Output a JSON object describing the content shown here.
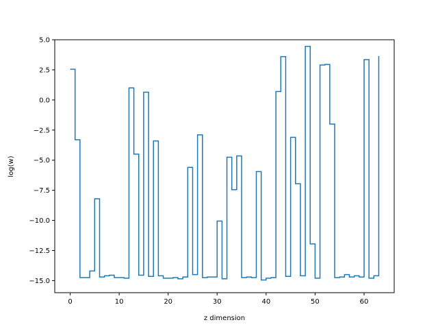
{
  "chart_data": {
    "type": "line",
    "drawstyle": "steps-post",
    "title": "",
    "xlabel": "z dimension",
    "ylabel": "log(w)",
    "xlim": [
      -3.15,
      66.15
    ],
    "ylim": [
      -16.0,
      5.0
    ],
    "xticks": [
      0,
      10,
      20,
      30,
      40,
      50,
      60
    ],
    "yticks": [
      5.0,
      2.5,
      0.0,
      -2.5,
      -5.0,
      -7.5,
      -10.0,
      -12.5,
      -15.0
    ],
    "ytick_labels": [
      "5.0",
      "2.5",
      "0.0",
      "−2.5",
      "−5.0",
      "−7.5",
      "−10.0",
      "−12.5",
      "−15.0"
    ],
    "grid": false,
    "line_color": "#1f77b4",
    "series": [
      {
        "x": [
          0,
          1,
          2,
          3,
          4,
          5,
          6,
          7,
          8,
          9,
          10,
          11,
          12,
          13,
          14,
          15,
          16,
          17,
          18,
          19,
          20,
          21,
          22,
          23,
          24,
          25,
          26,
          27,
          28,
          29,
          30,
          31,
          32,
          33,
          34,
          35,
          36,
          37,
          38,
          39,
          40,
          41,
          42,
          43,
          44,
          45,
          46,
          47,
          48,
          49,
          50,
          51,
          52,
          53,
          54,
          55,
          56,
          57,
          58,
          59,
          60,
          61,
          62,
          63
        ],
        "values": [
          2.55,
          -3.3,
          -14.75,
          -14.75,
          -14.2,
          -8.2,
          -14.7,
          -14.6,
          -14.55,
          -14.75,
          -14.75,
          -14.8,
          1.0,
          -4.5,
          -14.55,
          0.65,
          -14.65,
          -3.4,
          -14.6,
          -14.8,
          -14.8,
          -14.75,
          -14.85,
          -14.7,
          -5.6,
          -14.5,
          -2.9,
          -14.75,
          -14.7,
          -14.7,
          -10.05,
          -14.85,
          -4.75,
          -7.45,
          -4.65,
          -14.75,
          -14.7,
          -14.75,
          -5.95,
          -14.95,
          -14.8,
          -14.75,
          0.7,
          3.6,
          -14.65,
          -3.1,
          -6.95,
          -14.6,
          4.45,
          -11.95,
          -14.8,
          2.9,
          2.95,
          -2.0,
          -14.75,
          -14.7,
          -14.5,
          -14.7,
          -14.6,
          -14.7,
          3.35,
          -14.8,
          -14.6,
          3.65
        ]
      }
    ]
  }
}
